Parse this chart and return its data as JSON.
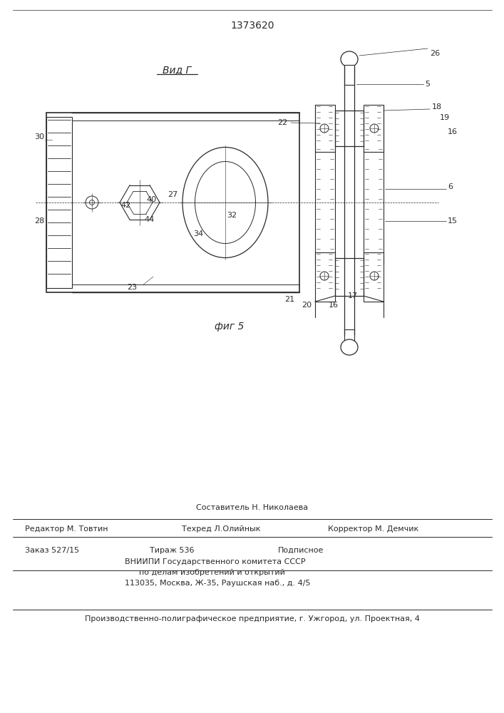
{
  "patent_number": "1373620",
  "view_label": "Вид Г",
  "fig_label": "фиг 5",
  "bg_color": "#ffffff",
  "line_color": "#2a2a2a",
  "footer_line0": "Составитель Н. Николаева",
  "footer_line1_col1": "Редактор М. Товтин",
  "footer_line1_col2": "Техред Л.Олийнык",
  "footer_line1_col3": "Корректор М. Демчик",
  "footer_line2_col1": "Заказ 527/15",
  "footer_line2_col2": "Тираж 536",
  "footer_line2_col3": "Подписное",
  "footer_line3": "ВНИИПИ Государственного комитета СССР",
  "footer_line4": "по делам изобретений и открытий",
  "footer_line5": "113035, Москва, Ж-35, Раушская наб., д. 4/5",
  "footer_last": "Производственно-полиграфическое предприятие, г. Ужгород, ул. Проектная, 4"
}
